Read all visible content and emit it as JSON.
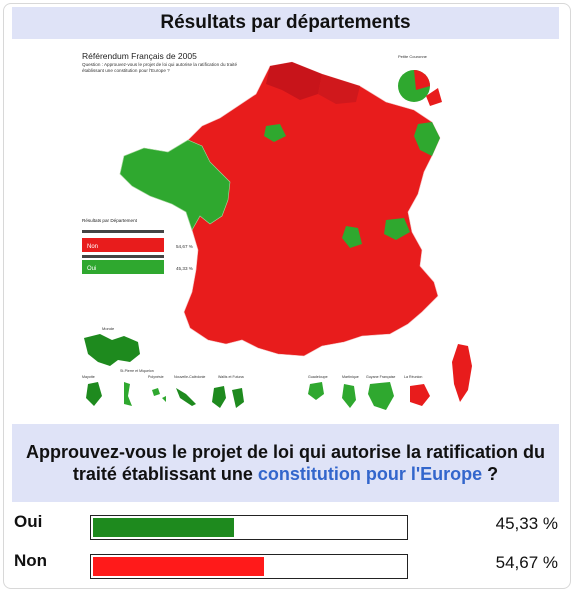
{
  "header": {
    "title": "Résultats par départements"
  },
  "map": {
    "title": "Référendum Français de 2005",
    "question_lines": [
      "Question : Approuvez-vous le projet de loi qui autorise la ratification du traité",
      "établissant une constitution pour l'Europe ?"
    ],
    "legend_title": "Résultats par Département",
    "legend_items": [
      {
        "label": "Non",
        "percent": "54,67 %",
        "color": "#e81c1c"
      },
      {
        "label": "Oui",
        "percent": "45,33 %",
        "color": "#2fa82f"
      }
    ],
    "inset_labels": {
      "petite_couronne": "Petite Couronne",
      "monde": "Monde",
      "mayotte": "Mayotte",
      "spm": "St-Pierre et Miquelon",
      "polynesie": "Polynésie",
      "nouvelle_caledonie": "Nouvelle-Calédonie",
      "wallis": "Wallis et Futuna",
      "guadeloupe": "Guadeloupe",
      "martinique": "Martinique",
      "guyane": "Guyane Française",
      "reunion": "La Réunion"
    },
    "colors": {
      "non": "#e81c1c",
      "non_dark": "#c8141a",
      "oui": "#2fa82f"
    }
  },
  "question": {
    "text_before": "Approuvez-vous le projet de loi qui autorise la ratification du traité établissant une ",
    "link_text": "constitution pour l'Europe",
    "text_after": " ?"
  },
  "results": [
    {
      "label": "Oui",
      "share": 0.4533,
      "percent": "45,33 %",
      "color": "#1e8a1e"
    },
    {
      "label": "Non",
      "share": 0.5467,
      "percent": "54,67 %",
      "color": "#ff1a1a"
    }
  ]
}
